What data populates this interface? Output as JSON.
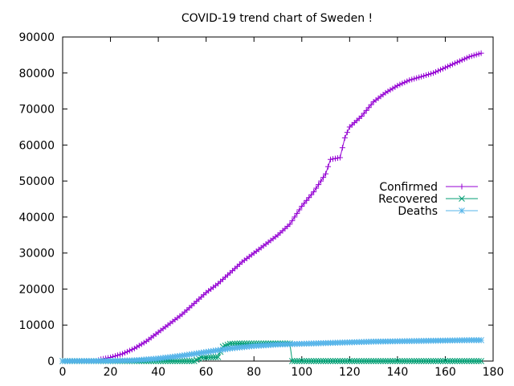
{
  "chart_data": {
    "type": "line",
    "title": "COVID-19 trend chart of Sweden !",
    "xlabel": "",
    "ylabel": "",
    "xlim": [
      0,
      180
    ],
    "ylim": [
      0,
      90000
    ],
    "x_ticks": [
      0,
      20,
      40,
      60,
      80,
      100,
      120,
      140,
      160,
      180
    ],
    "y_ticks": [
      0,
      10000,
      20000,
      30000,
      40000,
      50000,
      60000,
      70000,
      80000,
      90000
    ],
    "grid": false,
    "legend_position": "right-center",
    "series": [
      {
        "name": "Confirmed",
        "color": "#9400d3",
        "marker": "plus",
        "points": [
          [
            0,
            0
          ],
          [
            10,
            0
          ],
          [
            14,
            1
          ],
          [
            16,
            500
          ],
          [
            20,
            1000
          ],
          [
            25,
            2000
          ],
          [
            30,
            3500
          ],
          [
            35,
            5500
          ],
          [
            40,
            8000
          ],
          [
            45,
            10500
          ],
          [
            50,
            13000
          ],
          [
            55,
            16000
          ],
          [
            60,
            19000
          ],
          [
            65,
            21500
          ],
          [
            70,
            24500
          ],
          [
            75,
            27500
          ],
          [
            80,
            30000
          ],
          [
            85,
            32500
          ],
          [
            90,
            35000
          ],
          [
            95,
            38000
          ],
          [
            97,
            40000
          ],
          [
            100,
            43000
          ],
          [
            105,
            47000
          ],
          [
            110,
            52000
          ],
          [
            112,
            56000
          ],
          [
            116,
            56500
          ],
          [
            118,
            62000
          ],
          [
            120,
            65000
          ],
          [
            125,
            68000
          ],
          [
            130,
            72000
          ],
          [
            135,
            74500
          ],
          [
            140,
            76500
          ],
          [
            145,
            78000
          ],
          [
            150,
            79000
          ],
          [
            155,
            80000
          ],
          [
            160,
            81500
          ],
          [
            165,
            83000
          ],
          [
            170,
            84500
          ],
          [
            175,
            85500
          ]
        ]
      },
      {
        "name": "Recovered",
        "color": "#009e73",
        "marker": "cross",
        "points": [
          [
            0,
            0
          ],
          [
            20,
            0
          ],
          [
            40,
            0
          ],
          [
            55,
            0
          ],
          [
            58,
            1000
          ],
          [
            65,
            1100
          ],
          [
            67,
            4000
          ],
          [
            70,
            4800
          ],
          [
            75,
            4900
          ],
          [
            80,
            4900
          ],
          [
            85,
            4900
          ],
          [
            90,
            4900
          ],
          [
            95,
            4900
          ],
          [
            96,
            0
          ],
          [
            100,
            0
          ],
          [
            120,
            0
          ],
          [
            140,
            0
          ],
          [
            160,
            0
          ],
          [
            175,
            0
          ]
        ]
      },
      {
        "name": "Deaths",
        "color": "#56b4e9",
        "marker": "star",
        "points": [
          [
            0,
            0
          ],
          [
            20,
            50
          ],
          [
            30,
            200
          ],
          [
            40,
            700
          ],
          [
            50,
            1500
          ],
          [
            60,
            2500
          ],
          [
            70,
            3500
          ],
          [
            80,
            4200
          ],
          [
            90,
            4600
          ],
          [
            100,
            4800
          ],
          [
            110,
            5000
          ],
          [
            120,
            5200
          ],
          [
            130,
            5400
          ],
          [
            140,
            5500
          ],
          [
            150,
            5600
          ],
          [
            160,
            5700
          ],
          [
            170,
            5800
          ],
          [
            175,
            5800
          ]
        ]
      }
    ]
  }
}
